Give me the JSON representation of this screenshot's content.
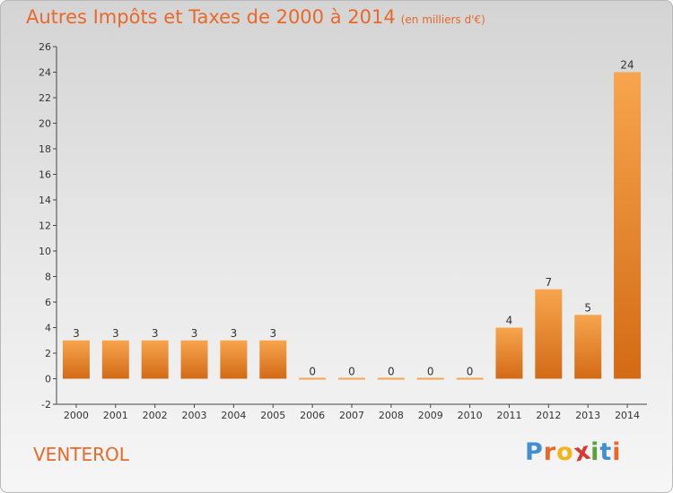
{
  "chart_data": {
    "type": "bar",
    "title": "Autres Impôts et Taxes de 2000 à 2014",
    "subtitle": "(en milliers d'€)",
    "categories": [
      "2000",
      "2001",
      "2002",
      "2003",
      "2004",
      "2005",
      "2006",
      "2007",
      "2008",
      "2009",
      "2010",
      "2011",
      "2012",
      "2013",
      "2014"
    ],
    "values": [
      3,
      3,
      3,
      3,
      3,
      3,
      0,
      0,
      0,
      0,
      0,
      4,
      7,
      5,
      24
    ],
    "ylim": [
      -2,
      26
    ],
    "yticks": [
      -2,
      0,
      2,
      4,
      6,
      8,
      10,
      12,
      14,
      16,
      18,
      20,
      22,
      24,
      26
    ],
    "grid": false,
    "bar_colors": {
      "light": "#f7a54e",
      "dark": "#d36a15"
    }
  },
  "place_name": "VENTEROL",
  "logo": {
    "letters": [
      "P",
      "r",
      "o",
      "x",
      "i",
      "t",
      "i"
    ],
    "colors": [
      "#3f8fd2",
      "#e8692a",
      "#f2b31b",
      "#d63b2f",
      "#5aa23a",
      "#3f8fd2",
      "#e8692a"
    ]
  }
}
